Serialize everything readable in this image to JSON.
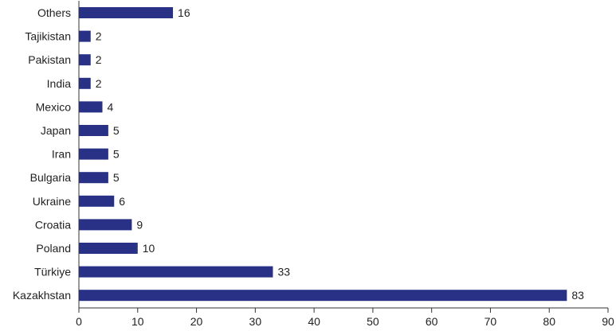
{
  "chart_data": {
    "type": "bar",
    "orientation": "horizontal",
    "categories": [
      "Others",
      "Tajikistan",
      "Pakistan",
      "India",
      "Mexico",
      "Japan",
      "Iran",
      "Bulgaria",
      "Ukraine",
      "Croatia",
      "Poland",
      "Türkiye",
      "Kazakhstan"
    ],
    "values": [
      16,
      2,
      2,
      2,
      4,
      5,
      5,
      5,
      6,
      9,
      10,
      33,
      83
    ],
    "value_labels": [
      "16",
      "2",
      "2",
      "2",
      "4",
      "5",
      "5",
      "5",
      "6",
      "9",
      "10",
      "33",
      "83"
    ],
    "xticks": [
      "0",
      "10",
      "20",
      "30",
      "40",
      "50",
      "60",
      "70",
      "80",
      "90"
    ],
    "xlim": [
      0,
      90
    ],
    "bar_color": "#283185",
    "axis_color": "#333333",
    "grid": false,
    "legend": "none"
  }
}
